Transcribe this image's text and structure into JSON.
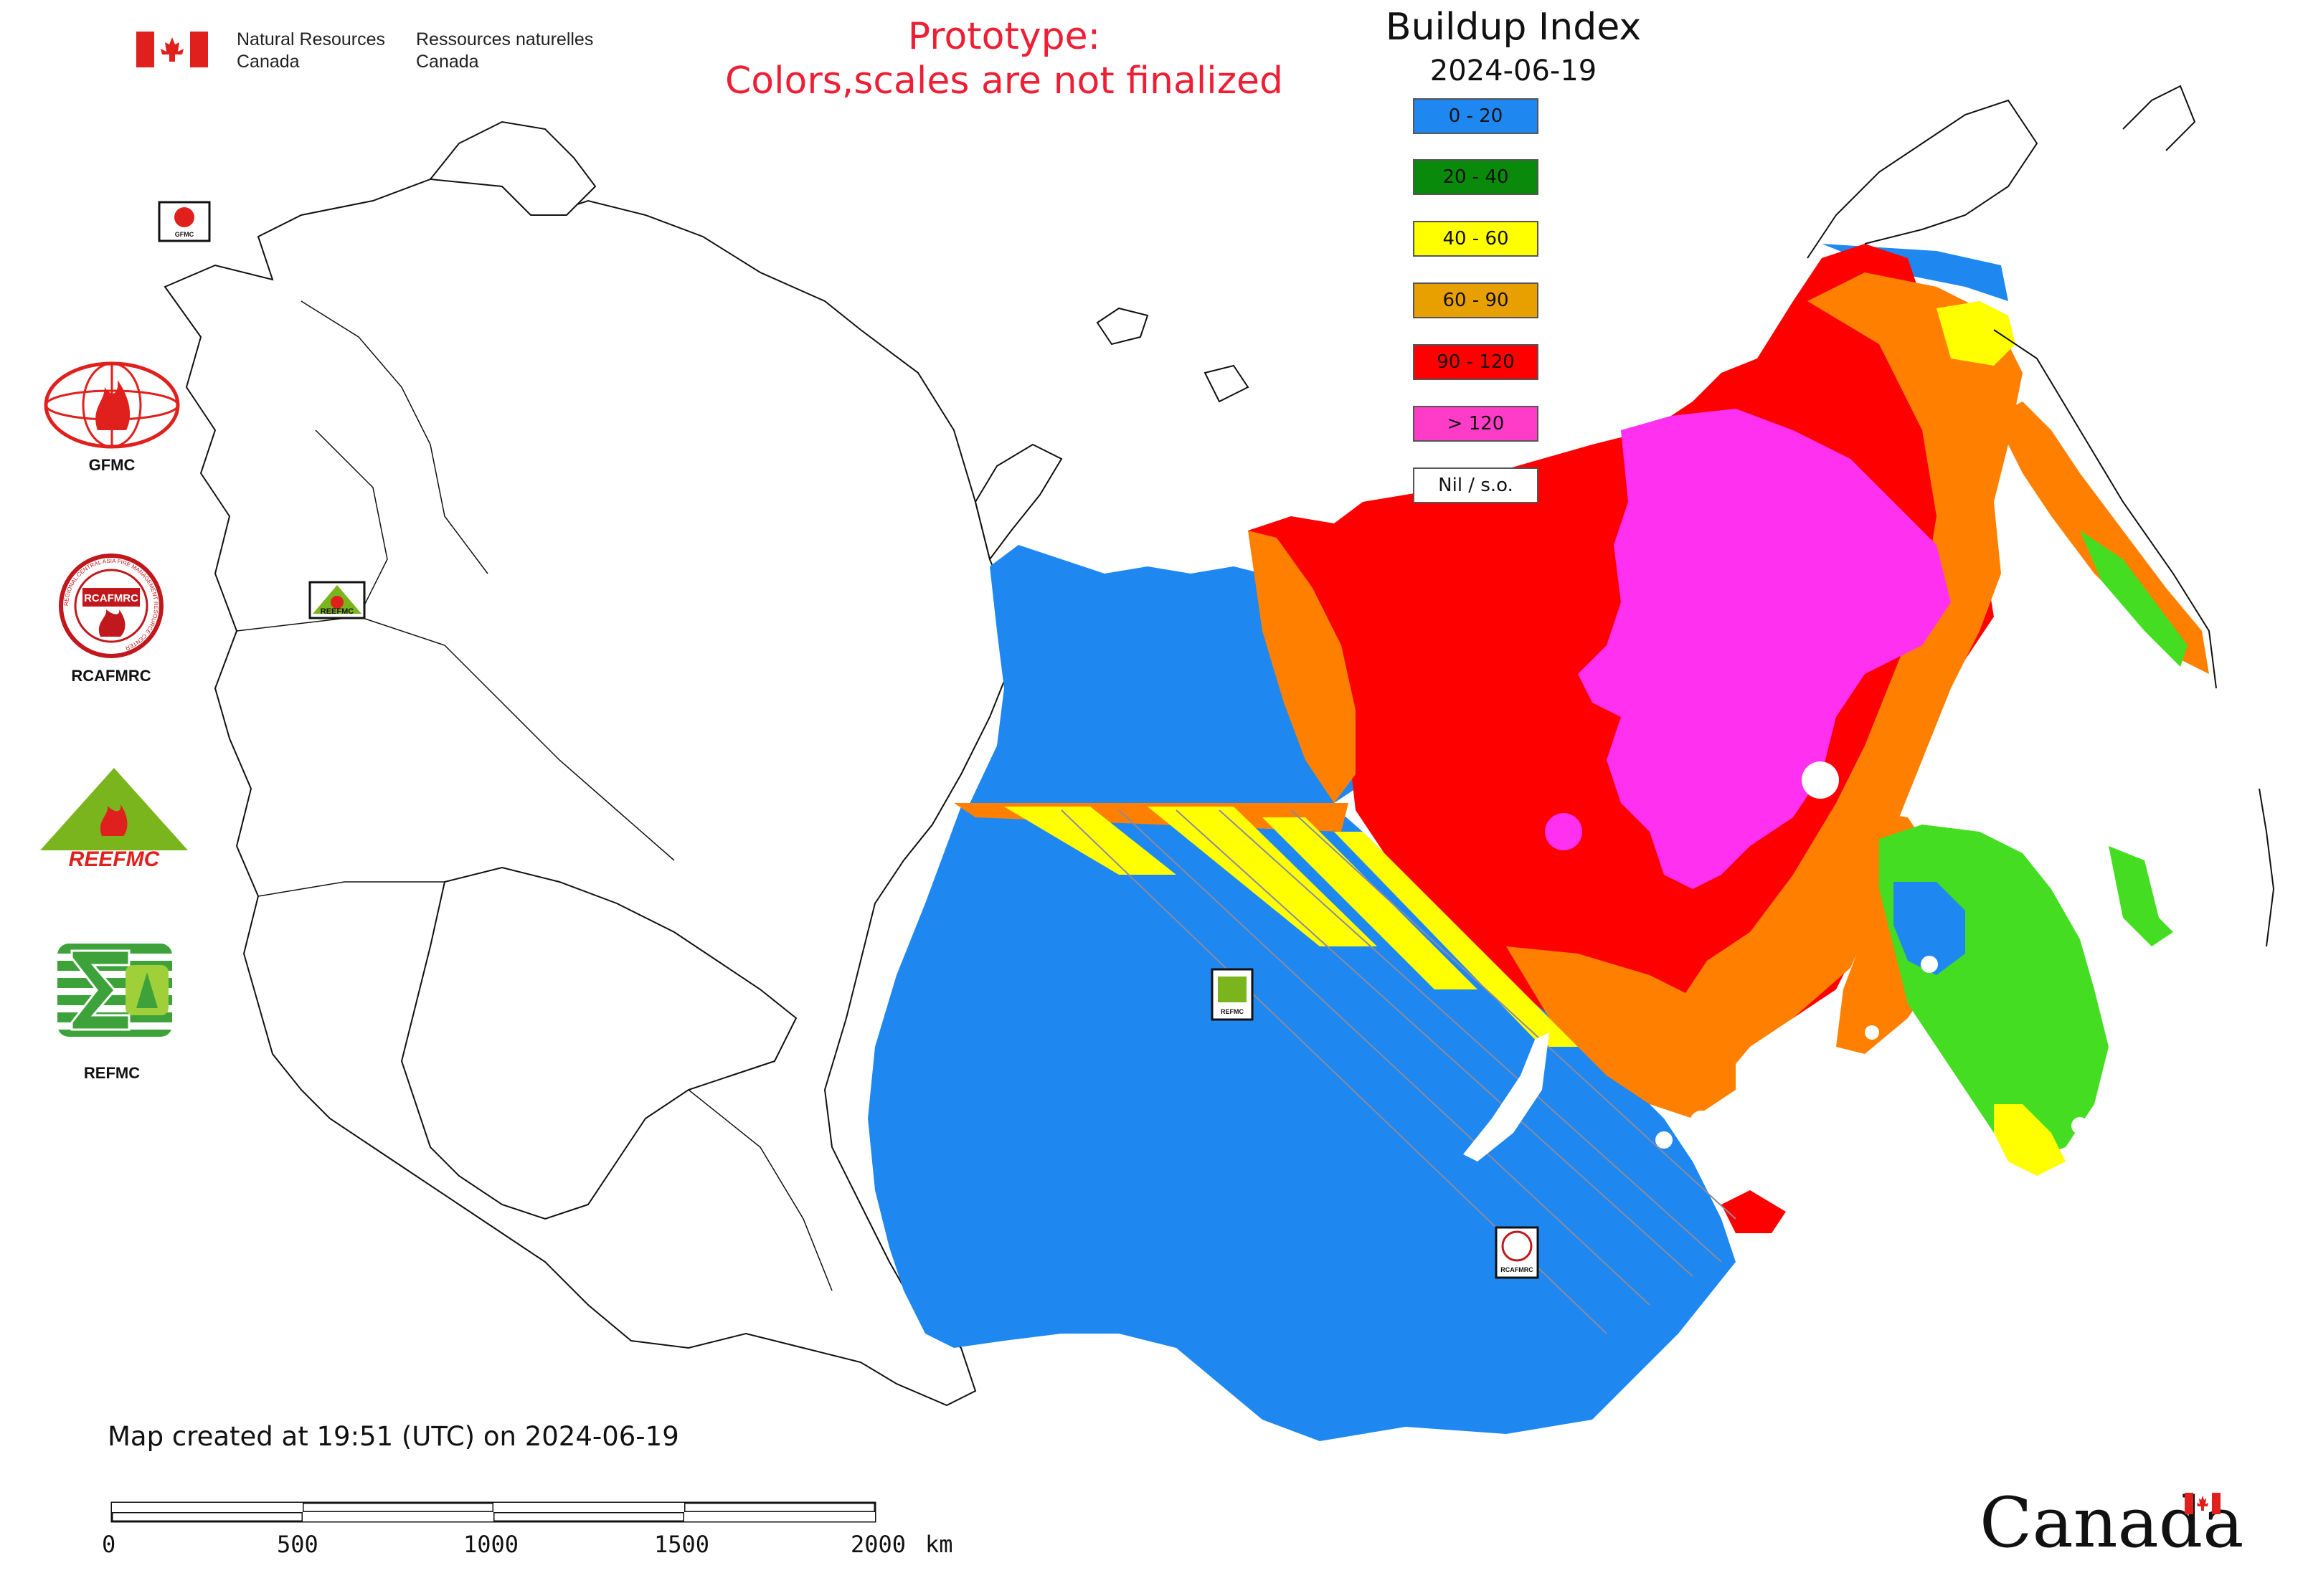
{
  "header": {
    "gov_en_line1": "Natural Resources",
    "gov_en_line2": "Canada",
    "gov_fr_line1": "Ressources naturelles",
    "gov_fr_line2": "Canada",
    "prototype_line1": "Prototype:",
    "prototype_line2": "Colors,scales are not finalized"
  },
  "legend": {
    "title": "Buildup Index",
    "date": "2024-06-19",
    "items": [
      {
        "label": "0 - 20",
        "color": "#1e88f0"
      },
      {
        "label": "20 - 40",
        "color": "#0a8a0a"
      },
      {
        "label": "40 - 60",
        "color": "#ffff00"
      },
      {
        "label": "60 - 90",
        "color": "#e8a000"
      },
      {
        "label": "90 - 120",
        "color": "#ff0000"
      },
      {
        "label": "> 120",
        "color": "#ff3cc8"
      },
      {
        "label": "Nil / s.o.",
        "color": "#ffffff"
      }
    ]
  },
  "logos": {
    "gfmc": "GFMC",
    "rcafmrc": "RCAFMRC",
    "reefmc_text": "REEFMC",
    "refmc": "REFMC",
    "rcafmrc_ring_text": "REGIONAL CENTRAL ASIA FIRE MANAGEMENT RESOURCE CENTER"
  },
  "map_badges": {
    "gfmc": "GFMC",
    "reefmc": "REEFMC",
    "refmc": "REFMC",
    "rcafmrc": "RCAFMRC"
  },
  "footer": {
    "created": "Map created at 19:51 (UTC) on 2024-06-19",
    "scale_unit": "km",
    "scale_ticks": [
      "0",
      "500",
      "1000",
      "1500",
      "2000"
    ],
    "wordmark": "Canada"
  }
}
